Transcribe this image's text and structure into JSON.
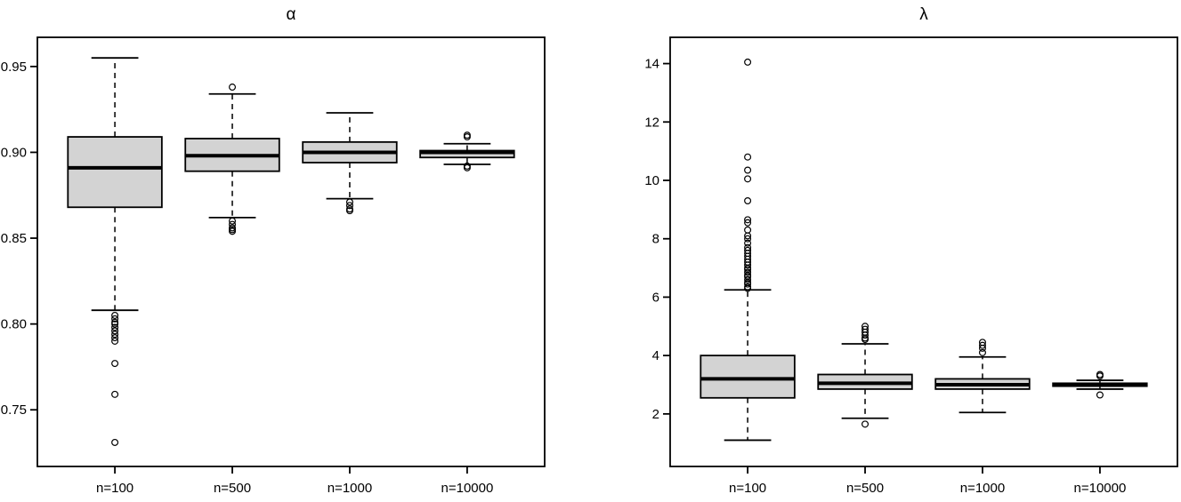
{
  "figure": {
    "background": "#ffffff",
    "colors": {
      "box_fill": "#d3d3d3",
      "box_stroke": "#000000",
      "text": "#000000"
    }
  },
  "chart_data": [
    {
      "type": "boxplot",
      "title": "α",
      "categories": [
        "n=100",
        "n=500",
        "n=1000",
        "n=10000"
      ],
      "ylim": [
        0.717,
        0.967
      ],
      "yticks": [
        0.75,
        0.8,
        0.85,
        0.9,
        0.95
      ],
      "ytick_labels": [
        "0.75",
        "0.80",
        "0.85",
        "0.90",
        "0.95"
      ],
      "grid": false,
      "legend": false,
      "boxes": [
        {
          "category": "n=100",
          "whisker_low": 0.808,
          "q1": 0.868,
          "median": 0.891,
          "q3": 0.909,
          "whisker_high": 0.955,
          "outliers": [
            0.805,
            0.803,
            0.801,
            0.8,
            0.798,
            0.796,
            0.794,
            0.792,
            0.79,
            0.777,
            0.759,
            0.731
          ]
        },
        {
          "category": "n=500",
          "whisker_low": 0.862,
          "q1": 0.889,
          "median": 0.898,
          "q3": 0.908,
          "whisker_high": 0.934,
          "outliers": [
            0.938,
            0.86,
            0.858,
            0.856,
            0.855,
            0.854
          ]
        },
        {
          "category": "n=1000",
          "whisker_low": 0.873,
          "q1": 0.894,
          "median": 0.9,
          "q3": 0.906,
          "whisker_high": 0.923,
          "outliers": [
            0.871,
            0.869,
            0.867,
            0.866
          ]
        },
        {
          "category": "n=10000",
          "whisker_low": 0.893,
          "q1": 0.897,
          "median": 0.9,
          "q3": 0.901,
          "whisker_high": 0.905,
          "outliers": [
            0.91,
            0.909,
            0.892,
            0.891
          ]
        }
      ]
    },
    {
      "type": "boxplot",
      "title": "λ",
      "categories": [
        "n=100",
        "n=500",
        "n=1000",
        "n=10000"
      ],
      "ylim": [
        0.2,
        14.9
      ],
      "yticks": [
        2,
        4,
        6,
        8,
        10,
        12,
        14
      ],
      "ytick_labels": [
        "2",
        "4",
        "6",
        "8",
        "10",
        "12",
        "14"
      ],
      "grid": false,
      "legend": false,
      "boxes": [
        {
          "category": "n=100",
          "whisker_low": 1.1,
          "q1": 2.55,
          "median": 3.2,
          "q3": 4.0,
          "whisker_high": 6.25,
          "outliers": [
            6.3,
            6.35,
            6.45,
            6.5,
            6.6,
            6.7,
            6.75,
            6.85,
            6.95,
            7.0,
            7.1,
            7.2,
            7.3,
            7.4,
            7.5,
            7.6,
            7.7,
            7.85,
            8.0,
            8.1,
            8.3,
            8.55,
            8.65,
            9.3,
            10.05,
            10.35,
            10.8,
            14.05
          ]
        },
        {
          "category": "n=500",
          "whisker_low": 1.85,
          "q1": 2.85,
          "median": 3.05,
          "q3": 3.35,
          "whisker_high": 4.4,
          "outliers": [
            4.55,
            4.6,
            4.7,
            4.8,
            4.9,
            5.0,
            1.65
          ]
        },
        {
          "category": "n=1000",
          "whisker_low": 2.05,
          "q1": 2.85,
          "median": 3.0,
          "q3": 3.2,
          "whisker_high": 3.95,
          "outliers": [
            4.1,
            4.25,
            4.35,
            4.45
          ]
        },
        {
          "category": "n=10000",
          "whisker_low": 2.85,
          "q1": 2.95,
          "median": 3.0,
          "q3": 3.05,
          "whisker_high": 3.15,
          "outliers": [
            3.3,
            3.35,
            2.65
          ]
        }
      ]
    }
  ]
}
